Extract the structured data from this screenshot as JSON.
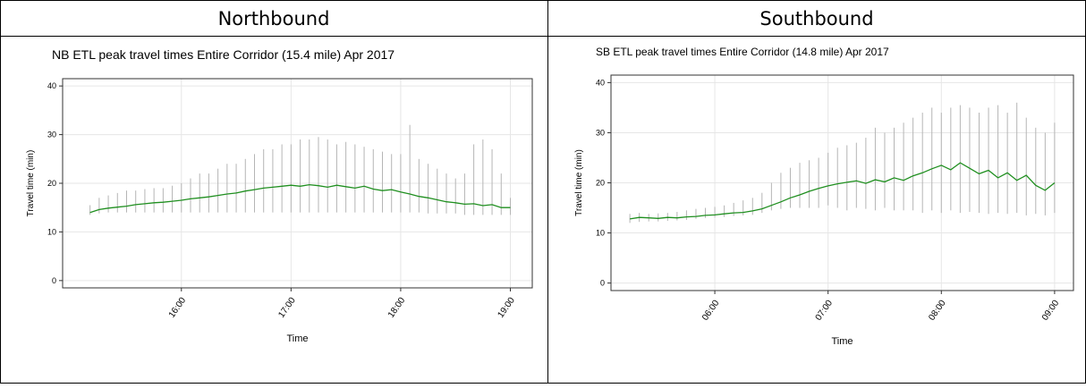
{
  "table": {
    "headers": [
      "Northbound",
      "Southbound"
    ]
  },
  "chart_data": [
    {
      "type": "range-line",
      "title": "NB ETL peak travel times Entire Corridor (15.4 mile) Apr 2017",
      "x_label": "Time",
      "y_label": "Travel time (min)",
      "x": [
        "15:10",
        "15:15",
        "15:20",
        "15:25",
        "15:30",
        "15:35",
        "15:40",
        "15:45",
        "15:50",
        "15:55",
        "16:00",
        "16:05",
        "16:10",
        "16:15",
        "16:20",
        "16:25",
        "16:30",
        "16:35",
        "16:40",
        "16:45",
        "16:50",
        "16:55",
        "17:00",
        "17:05",
        "17:10",
        "17:15",
        "17:20",
        "17:25",
        "17:30",
        "17:35",
        "17:40",
        "17:45",
        "17:50",
        "17:55",
        "18:00",
        "18:05",
        "18:10",
        "18:15",
        "18:20",
        "18:25",
        "18:30",
        "18:35",
        "18:40",
        "18:45",
        "18:50",
        "18:55",
        "19:00"
      ],
      "values": [
        14.0,
        14.6,
        14.9,
        15.1,
        15.3,
        15.6,
        15.8,
        16.0,
        16.1,
        16.3,
        16.5,
        16.8,
        17.0,
        17.2,
        17.5,
        17.8,
        18.0,
        18.4,
        18.7,
        19.0,
        19.2,
        19.4,
        19.6,
        19.4,
        19.7,
        19.5,
        19.2,
        19.6,
        19.3,
        19.0,
        19.4,
        18.8,
        18.5,
        18.7,
        18.2,
        17.8,
        17.3,
        17.0,
        16.6,
        16.2,
        16.0,
        15.7,
        15.8,
        15.4,
        15.6,
        15.0,
        15.0
      ],
      "low": [
        13.5,
        13.8,
        14,
        14,
        14,
        14,
        14,
        14,
        14,
        14,
        14,
        14,
        14,
        14,
        14,
        14,
        14,
        14,
        14,
        14,
        14,
        14,
        14,
        14,
        14,
        14,
        14,
        14,
        14,
        14,
        14,
        14,
        14,
        14,
        14,
        14,
        14,
        13.8,
        13.8,
        13.8,
        13.8,
        13.5,
        13.5,
        13.5,
        13.5,
        13.5,
        13.5
      ],
      "high": [
        15.5,
        17,
        17.5,
        18,
        18.5,
        18.5,
        18.8,
        19,
        19,
        19.5,
        20,
        21,
        22,
        22,
        23,
        24,
        24,
        25,
        26,
        27,
        27,
        28,
        28,
        29,
        29,
        29.5,
        29,
        28,
        28.5,
        28,
        27.5,
        27,
        26.5,
        26,
        26,
        32,
        25,
        24,
        23,
        22,
        21,
        22,
        28,
        29,
        27,
        22,
        17
      ],
      "color": "#1f8f1f",
      "range_color": "#b5b5b5",
      "xlim": [
        "14:55",
        "19:12"
      ],
      "xticks": [
        "16:00",
        "17:00",
        "18:00",
        "19:00"
      ],
      "ylim": [
        -1.5,
        41.5
      ],
      "yticks": [
        0,
        10,
        20,
        30,
        40
      ],
      "grid": true
    },
    {
      "type": "range-line",
      "title": "SB ETL peak travel times Entire Corridor (14.8 mile) Apr 2017",
      "x_label": "Time",
      "y_label": "Travel time (min)",
      "x": [
        "05:15",
        "05:20",
        "05:25",
        "05:30",
        "05:35",
        "05:40",
        "05:45",
        "05:50",
        "05:55",
        "06:00",
        "06:05",
        "06:10",
        "06:15",
        "06:20",
        "06:25",
        "06:30",
        "06:35",
        "06:40",
        "06:45",
        "06:50",
        "06:55",
        "07:00",
        "07:05",
        "07:10",
        "07:15",
        "07:20",
        "07:25",
        "07:30",
        "07:35",
        "07:40",
        "07:45",
        "07:50",
        "07:55",
        "08:00",
        "08:05",
        "08:10",
        "08:15",
        "08:20",
        "08:25",
        "08:30",
        "08:35",
        "08:40",
        "08:45",
        "08:50",
        "08:55",
        "09:00"
      ],
      "values": [
        12.8,
        13.1,
        13.0,
        12.9,
        13.1,
        13.0,
        13.2,
        13.3,
        13.5,
        13.6,
        13.8,
        14.0,
        14.1,
        14.4,
        14.8,
        15.5,
        16.2,
        17.0,
        17.6,
        18.3,
        18.9,
        19.4,
        19.8,
        20.1,
        20.4,
        19.9,
        20.6,
        20.2,
        21.0,
        20.5,
        21.4,
        22.0,
        22.8,
        23.5,
        22.6,
        24.0,
        22.9,
        21.8,
        22.5,
        21.0,
        22.0,
        20.5,
        21.5,
        19.5,
        18.5,
        20.0
      ],
      "low": [
        12,
        12.2,
        12.3,
        12.3,
        12.4,
        12.5,
        12.6,
        12.8,
        13,
        13.1,
        13.2,
        13.4,
        13.5,
        13.6,
        14,
        14.5,
        14.8,
        15,
        15,
        15,
        15,
        15.5,
        15,
        14.5,
        15,
        14.8,
        14.5,
        15,
        14.5,
        14.5,
        14.5,
        14,
        14.5,
        14,
        14.5,
        14,
        14.2,
        14,
        13.8,
        14,
        13.8,
        14,
        13.5,
        13.8,
        13.5,
        14
      ],
      "high": [
        13.8,
        14,
        13.8,
        13.9,
        14,
        14.2,
        14.5,
        14.8,
        15,
        15.2,
        15.5,
        16,
        16.5,
        17,
        18,
        20,
        22,
        23,
        24,
        24.5,
        25,
        26,
        27,
        27.5,
        28,
        29,
        31,
        30,
        31,
        32,
        33,
        34,
        35,
        34,
        35,
        35.5,
        35,
        34,
        35,
        35.5,
        34,
        36,
        33,
        31,
        30,
        32
      ],
      "color": "#1f8f1f",
      "range_color": "#b5b5b5",
      "xlim": [
        "05:05",
        "09:10"
      ],
      "xticks": [
        "06:00",
        "07:00",
        "08:00",
        "09:00"
      ],
      "ylim": [
        -1.5,
        41.5
      ],
      "yticks": [
        0,
        10,
        20,
        30,
        40
      ],
      "grid": true
    }
  ]
}
